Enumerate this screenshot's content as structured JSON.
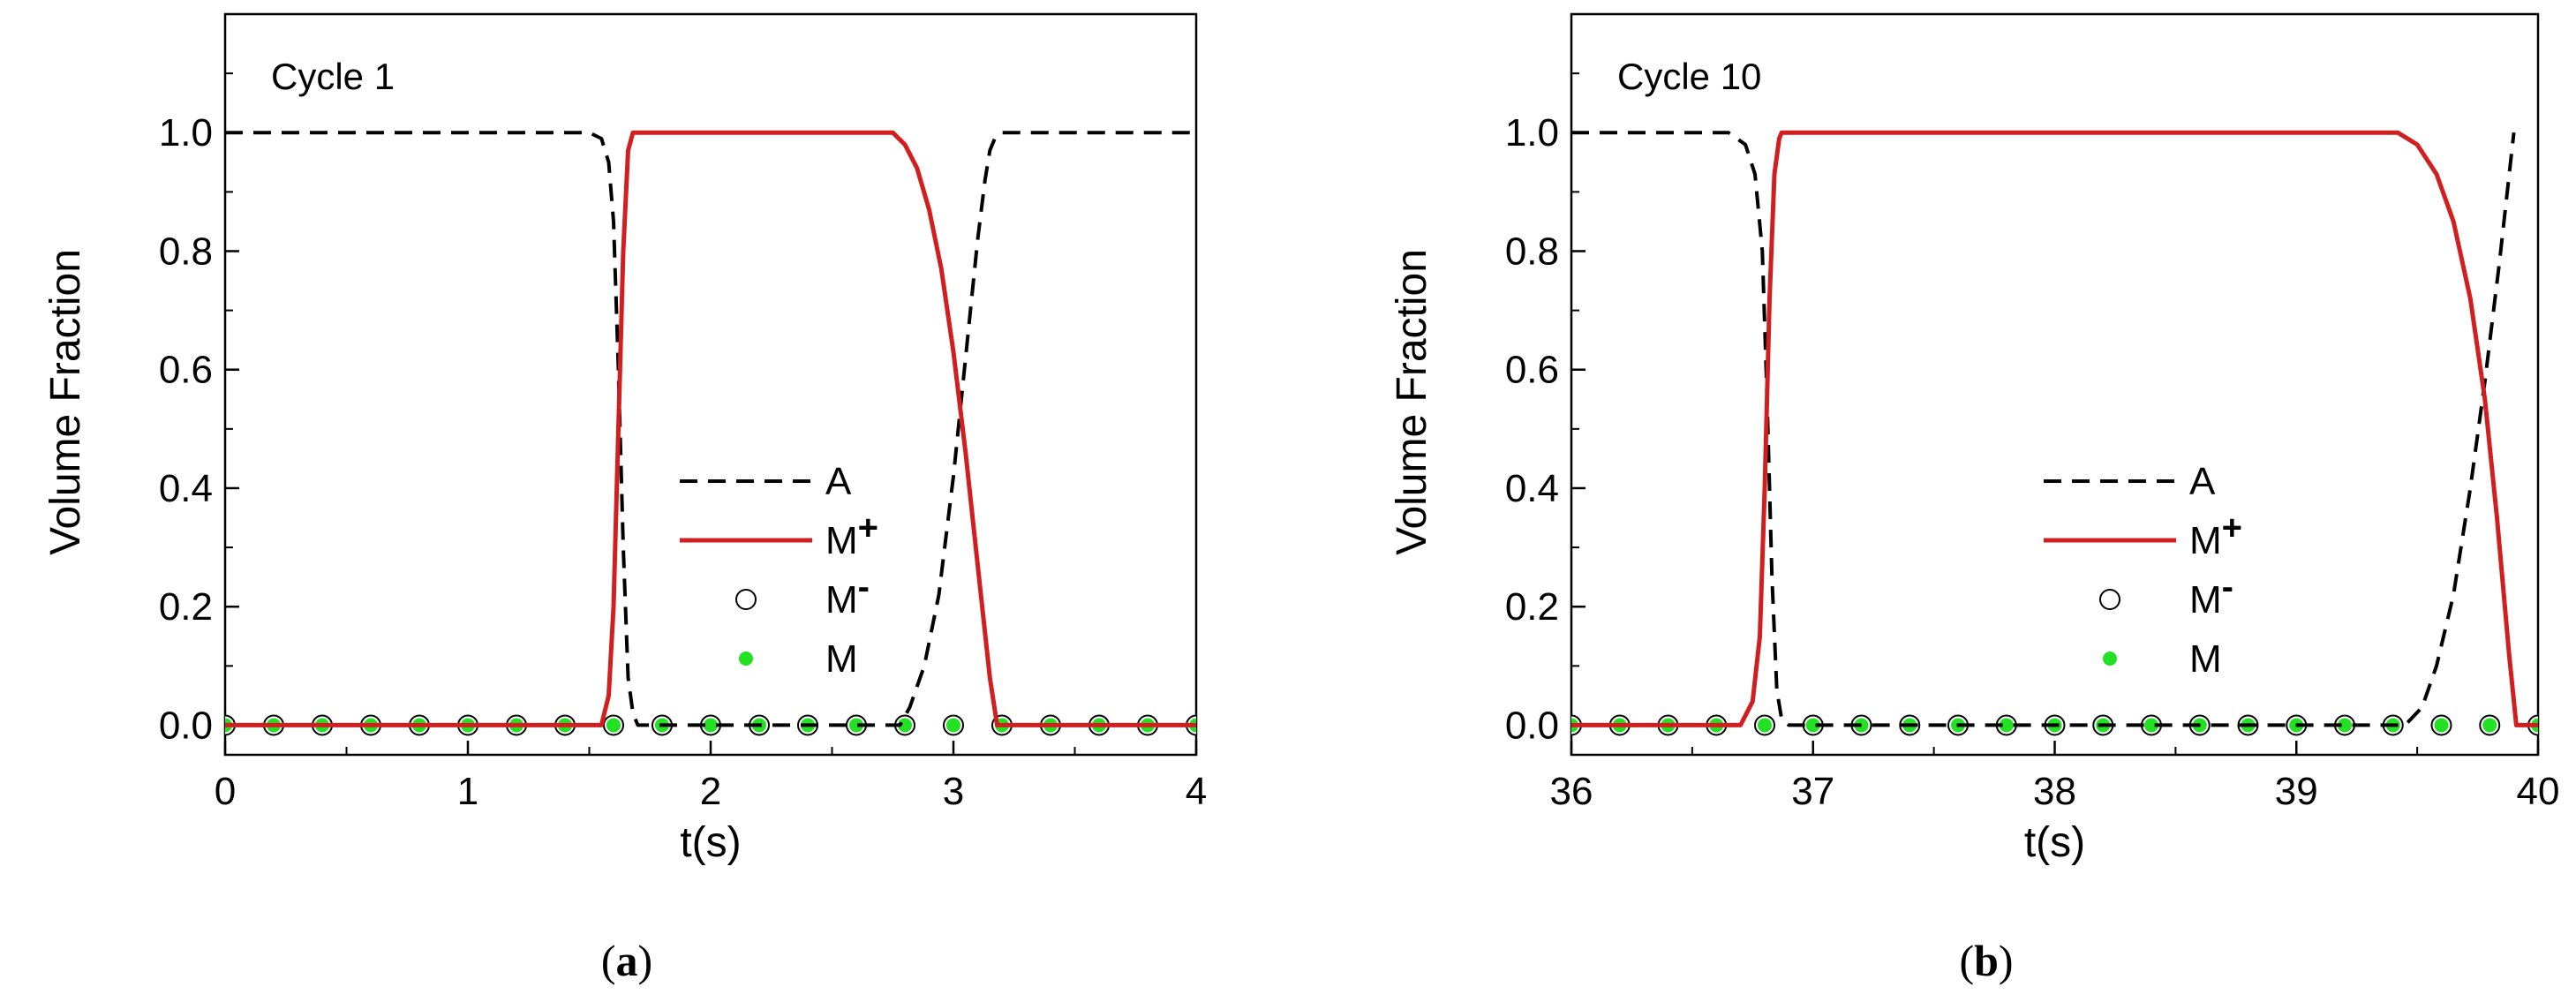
{
  "chart_data": [
    {
      "type": "line",
      "panel_label": "(a)",
      "panel_letter": "a",
      "annotation": "Cycle 1",
      "xlabel": "t(s)",
      "ylabel": "Volume Fraction",
      "xlim": [
        0,
        4
      ],
      "ylim": [
        -0.05,
        1.2
      ],
      "xticks": [
        "0",
        "1",
        "2",
        "3",
        "4"
      ],
      "xtick_values": [
        0,
        1,
        2,
        3,
        4
      ],
      "yticks": [
        "0.0",
        "0.2",
        "0.4",
        "0.6",
        "0.8",
        "1.0"
      ],
      "ytick_values": [
        0,
        0.2,
        0.4,
        0.6,
        0.8,
        1.0
      ],
      "legend_position": "center-right",
      "legend": [
        {
          "label": "A",
          "sup": "",
          "style": "dash",
          "color": "#000000"
        },
        {
          "label": "M",
          "sup": "+",
          "style": "line",
          "color": "#d11f1f"
        },
        {
          "label": "M",
          "sup": "-",
          "style": "open-circle",
          "color": "#000000"
        },
        {
          "label": "M",
          "sup": "",
          "style": "filled-circle",
          "color": "#22e022"
        }
      ],
      "series": [
        {
          "name": "A",
          "style": "dash",
          "color": "#000000",
          "x": [
            0,
            1.5,
            1.55,
            1.58,
            1.6,
            1.62,
            1.64,
            1.66,
            1.68,
            1.7,
            1.8,
            2.78,
            2.82,
            2.88,
            2.94,
            3.0,
            3.05,
            3.1,
            3.13,
            3.15,
            3.17,
            3.2,
            4.0
          ],
          "y": [
            1,
            1,
            0.99,
            0.95,
            0.85,
            0.6,
            0.3,
            0.08,
            0.02,
            0,
            0,
            0,
            0.03,
            0.1,
            0.22,
            0.42,
            0.62,
            0.82,
            0.92,
            0.97,
            0.99,
            1,
            1
          ]
        },
        {
          "name": "M+",
          "style": "line",
          "color": "#d11f1f",
          "x": [
            0,
            1.55,
            1.58,
            1.6,
            1.62,
            1.64,
            1.66,
            1.68,
            2.75,
            2.8,
            2.85,
            2.9,
            2.95,
            3.0,
            3.05,
            3.1,
            3.15,
            3.18,
            4.0
          ],
          "y": [
            0,
            0,
            0.05,
            0.2,
            0.5,
            0.8,
            0.97,
            1.0,
            1.0,
            0.98,
            0.94,
            0.87,
            0.77,
            0.63,
            0.46,
            0.27,
            0.08,
            0,
            0
          ]
        },
        {
          "name": "M-",
          "style": "open-circle",
          "color": "#000000",
          "x": [
            0,
            0.2,
            0.4,
            0.6,
            0.8,
            1.0,
            1.2,
            1.4,
            1.6,
            1.8,
            2.0,
            2.2,
            2.4,
            2.6,
            2.8,
            3.0,
            3.2,
            3.4,
            3.6,
            3.8,
            4.0
          ],
          "y": [
            0,
            0,
            0,
            0,
            0,
            0,
            0,
            0,
            0,
            0,
            0,
            0,
            0,
            0,
            0,
            0,
            0,
            0,
            0,
            0,
            0
          ]
        },
        {
          "name": "M",
          "style": "filled-circle",
          "color": "#22e022",
          "x": [
            0,
            0.2,
            0.4,
            0.6,
            0.8,
            1.0,
            1.2,
            1.4,
            1.6,
            1.8,
            2.0,
            2.2,
            2.4,
            2.6,
            2.8,
            3.0,
            3.2,
            3.4,
            3.6,
            3.8,
            4.0
          ],
          "y": [
            0,
            0,
            0,
            0,
            0,
            0,
            0,
            0,
            0,
            0,
            0,
            0,
            0,
            0,
            0,
            0,
            0,
            0,
            0,
            0,
            0
          ]
        }
      ]
    },
    {
      "type": "line",
      "panel_label": "(b)",
      "panel_letter": "b",
      "annotation": "Cycle 10",
      "xlabel": "t(s)",
      "ylabel": "Volume Fraction",
      "xlim": [
        36,
        40
      ],
      "ylim": [
        -0.05,
        1.2
      ],
      "xticks": [
        "36",
        "37",
        "38",
        "39",
        "40"
      ],
      "xtick_values": [
        36,
        37,
        38,
        39,
        40
      ],
      "yticks": [
        "0.0",
        "0.2",
        "0.4",
        "0.6",
        "0.8",
        "1.0"
      ],
      "ytick_values": [
        0,
        0.2,
        0.4,
        0.6,
        0.8,
        1.0
      ],
      "legend_position": "center-right",
      "legend": [
        {
          "label": "A",
          "sup": "",
          "style": "dash",
          "color": "#000000"
        },
        {
          "label": "M",
          "sup": "+",
          "style": "line",
          "color": "#d11f1f"
        },
        {
          "label": "M",
          "sup": "-",
          "style": "open-circle",
          "color": "#000000"
        },
        {
          "label": "M",
          "sup": "",
          "style": "filled-circle",
          "color": "#22e022"
        }
      ],
      "series": [
        {
          "name": "A",
          "style": "dash",
          "color": "#000000",
          "x": [
            36,
            36.65,
            36.72,
            36.76,
            36.79,
            36.81,
            36.83,
            36.85,
            36.87,
            36.9,
            39.45,
            39.52,
            39.58,
            39.65,
            39.72,
            39.78,
            39.84,
            39.9
          ],
          "y": [
            1,
            1,
            0.98,
            0.93,
            0.8,
            0.55,
            0.25,
            0.06,
            0.01,
            0,
            0,
            0.03,
            0.1,
            0.22,
            0.4,
            0.58,
            0.78,
            1.0
          ]
        },
        {
          "name": "M+",
          "style": "line",
          "color": "#d11f1f",
          "x": [
            36,
            36.7,
            36.75,
            36.78,
            36.8,
            36.82,
            36.84,
            36.86,
            36.87,
            39.42,
            39.5,
            39.58,
            39.65,
            39.72,
            39.78,
            39.83,
            39.88,
            39.91,
            40.0
          ],
          "y": [
            0,
            0,
            0.04,
            0.15,
            0.4,
            0.72,
            0.93,
            0.99,
            1.0,
            1.0,
            0.98,
            0.93,
            0.85,
            0.72,
            0.55,
            0.35,
            0.12,
            0,
            0
          ]
        },
        {
          "name": "M-",
          "style": "open-circle",
          "color": "#000000",
          "x": [
            36,
            36.2,
            36.4,
            36.6,
            36.8,
            37.0,
            37.2,
            37.4,
            37.6,
            37.8,
            38.0,
            38.2,
            38.4,
            38.6,
            38.8,
            39.0,
            39.2,
            39.4,
            39.6,
            39.8,
            40.0
          ],
          "y": [
            0,
            0,
            0,
            0,
            0,
            0,
            0,
            0,
            0,
            0,
            0,
            0,
            0,
            0,
            0,
            0,
            0,
            0,
            0,
            0,
            0
          ]
        },
        {
          "name": "M",
          "style": "filled-circle",
          "color": "#22e022",
          "x": [
            36,
            36.2,
            36.4,
            36.6,
            36.8,
            37.0,
            37.2,
            37.4,
            37.6,
            37.8,
            38.0,
            38.2,
            38.4,
            38.6,
            38.8,
            39.0,
            39.2,
            39.4,
            39.6,
            39.8,
            40.0
          ],
          "y": [
            0,
            0,
            0,
            0,
            0,
            0,
            0,
            0,
            0,
            0,
            0,
            0,
            0,
            0,
            0,
            0,
            0,
            0,
            0,
            0,
            0
          ]
        }
      ]
    }
  ]
}
